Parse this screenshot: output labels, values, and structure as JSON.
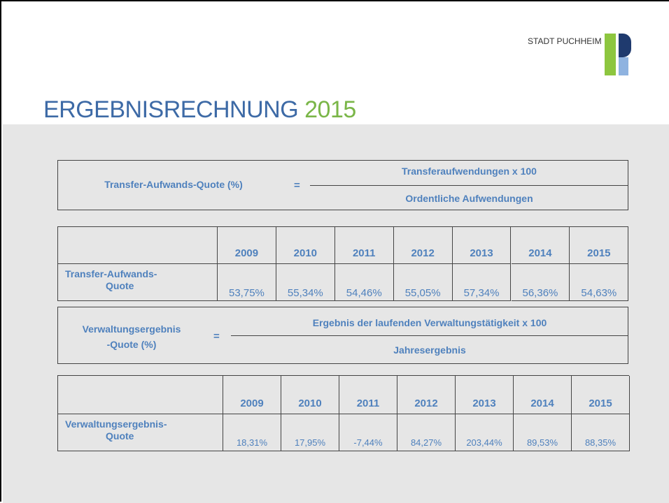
{
  "header": {
    "brand": "STADT PUCHHEIM"
  },
  "title": {
    "main": "ERGEBNISRECHNUNG",
    "year": "2015"
  },
  "formula1": {
    "label": "Transfer-Aufwands-Quote (%)",
    "equals": "=",
    "numerator": "Transferaufwendungen x 100",
    "denominator": "Ordentliche Aufwendungen"
  },
  "table1": {
    "years": [
      "2009",
      "2010",
      "2011",
      "2012",
      "2013",
      "2014",
      "2015"
    ],
    "row_label": [
      "Transfer-Aufwands-",
      "Quote"
    ],
    "values": [
      "53,75%",
      "55,34%",
      "54,46%",
      "55,05%",
      "57,34%",
      "56,36%",
      "54,63%"
    ]
  },
  "formula2": {
    "label": [
      "Verwaltungsergebnis",
      "-Quote (%)"
    ],
    "equals": "=",
    "numerator": "Ergebnis der laufenden Verwaltungstätigkeit x 100",
    "denominator": "Jahresergebnis"
  },
  "table2": {
    "years": [
      "2009",
      "2010",
      "2011",
      "2012",
      "2013",
      "2014",
      "2015"
    ],
    "row_label": [
      "Verwaltungsergebnis-",
      "Quote"
    ],
    "values": [
      "18,31%",
      "17,95%",
      "-7,44%",
      "84,27%",
      "203,44%",
      "89,53%",
      "88,35%"
    ]
  }
}
